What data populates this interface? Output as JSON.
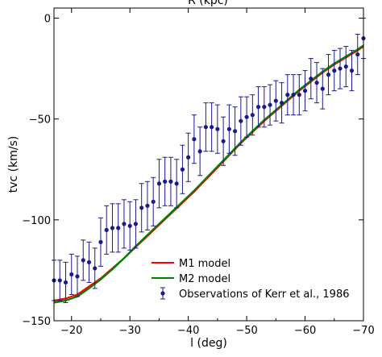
{
  "chart_data": {
    "type": "line",
    "title": "",
    "top_axis_label": "R (kpc)",
    "xlabel": "l (deg)",
    "ylabel": "tvc (km/s)",
    "xlim": [
      -17,
      -70
    ],
    "ylim": [
      -150,
      5
    ],
    "x_ticks": [
      -20,
      -30,
      -40,
      -50,
      -60,
      -70
    ],
    "x_tick_labels": [
      "−20",
      "−30",
      "−40",
      "−50",
      "−60",
      "−70"
    ],
    "y_ticks": [
      0,
      -50,
      -100,
      -150
    ],
    "y_tick_labels": [
      "0",
      "−50",
      "−100",
      "−150"
    ],
    "grid": false,
    "legend_position": "bottom-right",
    "series": [
      {
        "name": "M1 model",
        "kind": "line",
        "color": "#ff0000",
        "x": [
          -17,
          -19,
          -21,
          -23,
          -25,
          -27,
          -29,
          -31,
          -33,
          -35,
          -37,
          -39,
          -41,
          -43,
          -45,
          -47,
          -49,
          -51,
          -53,
          -55,
          -57,
          -59,
          -61,
          -63,
          -65,
          -67,
          -69,
          -70
        ],
        "y": [
          -140,
          -139,
          -137,
          -133,
          -129,
          -124,
          -119,
          -113.5,
          -108,
          -102.5,
          -97,
          -91.5,
          -86,
          -80,
          -74,
          -68,
          -62,
          -56.5,
          -51,
          -46,
          -41,
          -36,
          -31.5,
          -27,
          -23,
          -19.5,
          -16,
          -14
        ]
      },
      {
        "name": "M2 model",
        "kind": "line",
        "color": "#008000",
        "x": [
          -17,
          -19,
          -21,
          -23,
          -25,
          -27,
          -29,
          -31,
          -33,
          -35,
          -37,
          -39,
          -41,
          -43,
          -45,
          -47,
          -49,
          -51,
          -53,
          -55,
          -57,
          -59,
          -61,
          -63,
          -65,
          -67,
          -69,
          -70
        ],
        "y": [
          -141,
          -140,
          -138,
          -134,
          -129.5,
          -124.5,
          -119,
          -113,
          -107.5,
          -102,
          -96.5,
          -91,
          -85.5,
          -79.5,
          -73.5,
          -67.5,
          -61.5,
          -56,
          -50.5,
          -45.5,
          -40.5,
          -35.5,
          -31,
          -26.5,
          -22.5,
          -19,
          -15.5,
          -13.5
        ]
      },
      {
        "name": "Observations of Kerr et al., 1986",
        "kind": "errorbar",
        "color": "#1a1a8c",
        "x": [
          -17,
          -18,
          -19,
          -20,
          -21,
          -22,
          -23,
          -24,
          -25,
          -26,
          -27,
          -28,
          -29,
          -30,
          -31,
          -32,
          -33,
          -34,
          -35,
          -36,
          -37,
          -38,
          -39,
          -40,
          -41,
          -42,
          -43,
          -44,
          -45,
          -46,
          -47,
          -48,
          -49,
          -50,
          -51,
          -52,
          -53,
          -54,
          -55,
          -56,
          -57,
          -58,
          -59,
          -60,
          -61,
          -62,
          -63,
          -64,
          -65,
          -66,
          -67,
          -68,
          -69,
          -70
        ],
        "y": [
          -130,
          -130,
          -131,
          -127,
          -128,
          -120,
          -121,
          -124,
          -111,
          -105,
          -104,
          -104,
          -102,
          -103,
          -102,
          -94,
          -93,
          -91,
          -82,
          -81,
          -81,
          -82,
          -75,
          -69,
          -60,
          -66,
          -54,
          -54,
          -55,
          -61,
          -55,
          -56,
          -51,
          -49,
          -48,
          -44,
          -44,
          -43,
          -41,
          -42,
          -38,
          -38,
          -38,
          -36,
          -30,
          -32,
          -35,
          -28,
          -26,
          -25,
          -24,
          -26,
          -18,
          -10
        ],
        "err": [
          10,
          10,
          10,
          10,
          10,
          10,
          10,
          10,
          12,
          12,
          12,
          12,
          12,
          12,
          12,
          12,
          12,
          12,
          12,
          12,
          12,
          12,
          12,
          12,
          12,
          12,
          12,
          12,
          12,
          12,
          12,
          12,
          12,
          10,
          10,
          10,
          10,
          10,
          10,
          10,
          10,
          10,
          10,
          10,
          10,
          10,
          10,
          10,
          10,
          10,
          10,
          10,
          10,
          10
        ]
      }
    ]
  }
}
